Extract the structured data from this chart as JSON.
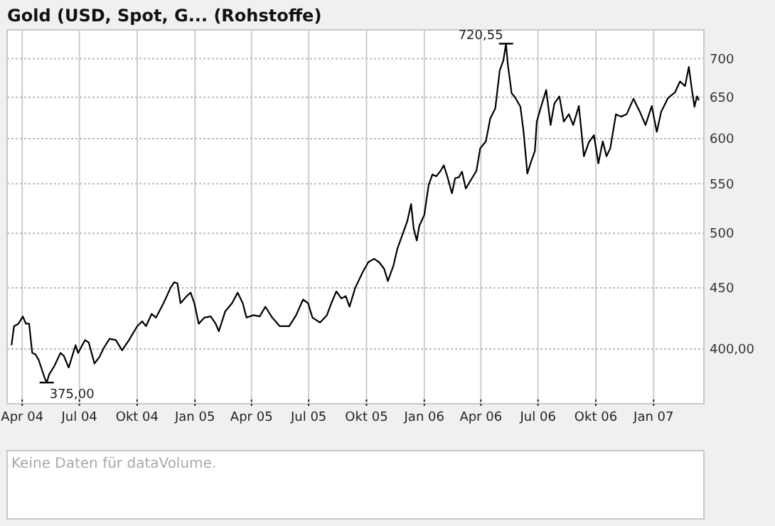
{
  "chart_data": [
    {
      "type": "line",
      "title": "Gold (USD, Spot, G... (Rohstoffe)",
      "log": true,
      "grid": true,
      "color": "#000000",
      "xlim": [
        "2004-03-08",
        "2007-03-22"
      ],
      "ylim": [
        360,
        740
      ],
      "xticks": [
        {
          "value": "2004-04-01",
          "label": "Apr 04"
        },
        {
          "value": "2004-07-01",
          "label": "Jul 04"
        },
        {
          "value": "2004-10-01",
          "label": "Okt 04"
        },
        {
          "value": "2005-01-01",
          "label": "Jan 05"
        },
        {
          "value": "2005-04-01",
          "label": "Apr 05"
        },
        {
          "value": "2005-07-01",
          "label": "Jul 05"
        },
        {
          "value": "2005-10-01",
          "label": "Okt 05"
        },
        {
          "value": "2006-01-01",
          "label": "Jan 06"
        },
        {
          "value": "2006-04-01",
          "label": "Apr 06"
        },
        {
          "value": "2006-07-01",
          "label": "Jul 06"
        },
        {
          "value": "2006-10-01",
          "label": "Okt 06"
        },
        {
          "value": "2007-01-01",
          "label": "Jan 07"
        }
      ],
      "yticks": [
        {
          "value": 400,
          "label": "400,00"
        },
        450,
        500,
        550,
        600,
        650,
        700
      ],
      "annotations": [
        {
          "text": "720,55",
          "x": "2006-05-11",
          "y": 720.55
        },
        {
          "text": "375,00",
          "x": "2004-05-10",
          "y": 375
        }
      ],
      "x": [
        "2004-03-15",
        "2004-03-19",
        "2004-03-26",
        "2004-04-02",
        "2004-04-07",
        "2004-04-12",
        "2004-04-17",
        "2004-04-22",
        "2004-04-27",
        "2004-05-02",
        "2004-05-07",
        "2004-05-10",
        "2004-05-14",
        "2004-05-22",
        "2004-06-01",
        "2004-06-06",
        "2004-06-14",
        "2004-06-25",
        "2004-06-29",
        "2004-07-10",
        "2004-07-16",
        "2004-07-25",
        "2004-08-02",
        "2004-08-09",
        "2004-08-18",
        "2004-08-28",
        "2004-09-07",
        "2004-09-18",
        "2004-10-01",
        "2004-10-09",
        "2004-10-15",
        "2004-10-24",
        "2004-10-31",
        "2004-11-12",
        "2004-11-23",
        "2004-11-29",
        "2004-12-04",
        "2004-12-09",
        "2004-12-19",
        "2004-12-25",
        "2004-12-31",
        "2005-01-07",
        "2005-01-16",
        "2005-01-26",
        "2005-02-03",
        "2005-02-08",
        "2005-02-18",
        "2005-03-01",
        "2005-03-10",
        "2005-03-18",
        "2005-03-24",
        "2005-04-04",
        "2005-04-14",
        "2005-04-23",
        "2005-05-04",
        "2005-05-16",
        "2005-05-31",
        "2005-06-11",
        "2005-06-22",
        "2005-06-30",
        "2005-07-07",
        "2005-07-19",
        "2005-07-30",
        "2005-08-06",
        "2005-08-14",
        "2005-08-22",
        "2005-08-29",
        "2005-09-04",
        "2005-09-13",
        "2005-09-25",
        "2005-10-04",
        "2005-10-13",
        "2005-10-21",
        "2005-10-29",
        "2005-11-04",
        "2005-11-13",
        "2005-11-19",
        "2005-11-28",
        "2005-12-05",
        "2005-12-11",
        "2005-12-15",
        "2005-12-20",
        "2005-12-24",
        "2006-01-01",
        "2006-01-08",
        "2006-01-14",
        "2006-01-20",
        "2006-01-27",
        "2006-02-01",
        "2006-02-07",
        "2006-02-14",
        "2006-02-19",
        "2006-02-25",
        "2006-03-02",
        "2006-03-08",
        "2006-03-17",
        "2006-03-25",
        "2006-03-31",
        "2006-04-09",
        "2006-04-16",
        "2006-04-24",
        "2006-05-01",
        "2006-05-07",
        "2006-05-11",
        "2006-05-14",
        "2006-05-20",
        "2006-05-26",
        "2006-06-03",
        "2006-06-08",
        "2006-06-14",
        "2006-06-19",
        "2006-06-26",
        "2006-06-29",
        "2006-07-05",
        "2006-07-14",
        "2006-07-21",
        "2006-07-27",
        "2006-08-04",
        "2006-08-11",
        "2006-08-19",
        "2006-08-26",
        "2006-09-04",
        "2006-09-12",
        "2006-09-20",
        "2006-09-28",
        "2006-10-05",
        "2006-10-12",
        "2006-10-18",
        "2006-10-24",
        "2006-11-02",
        "2006-11-10",
        "2006-11-19",
        "2006-11-30",
        "2006-12-10",
        "2006-12-19",
        "2006-12-29",
        "2007-01-06",
        "2007-01-13",
        "2007-01-24",
        "2007-02-04",
        "2007-02-12",
        "2007-02-20",
        "2007-02-26",
        "2007-03-03",
        "2007-03-07",
        "2007-03-11",
        "2007-03-14"
      ],
      "values": [
        403,
        418,
        420,
        426,
        420,
        420,
        397,
        396,
        392,
        385,
        378,
        375,
        381,
        387,
        397,
        395,
        386,
        403,
        397,
        407,
        405,
        389,
        394,
        401,
        408,
        407,
        399,
        407,
        418,
        422,
        418,
        428,
        425,
        437,
        450,
        455,
        454,
        437,
        443,
        446,
        437,
        420,
        425,
        426,
        420,
        414,
        430,
        437,
        446,
        437,
        425,
        427,
        426,
        434,
        425,
        418,
        418,
        427,
        440,
        437,
        425,
        421,
        427,
        437,
        447,
        441,
        443,
        434,
        450,
        464,
        473,
        476,
        473,
        467,
        456,
        470,
        485,
        500,
        512,
        529,
        505,
        493,
        507,
        518,
        549,
        560,
        558,
        564,
        570,
        557,
        540,
        556,
        557,
        563,
        545,
        555,
        564,
        589,
        597,
        624,
        636,
        684,
        698,
        720.55,
        692,
        655,
        649,
        638,
        608,
        561,
        572,
        586,
        620,
        636,
        659,
        616,
        642,
        651,
        620,
        629,
        616,
        639,
        580,
        596,
        604,
        572,
        597,
        580,
        589,
        629,
        626,
        629,
        648,
        632,
        616,
        639,
        608,
        632,
        649,
        656,
        670,
        664,
        689,
        659,
        638,
        651,
        646
      ]
    },
    {
      "type": "other",
      "annotations": [
        "Keine Daten für dataVolume."
      ]
    }
  ]
}
